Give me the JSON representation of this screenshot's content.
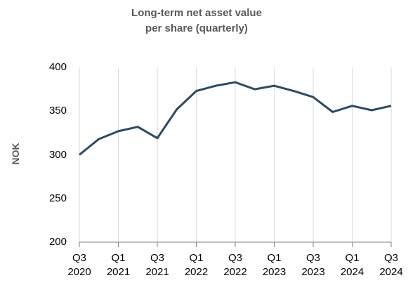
{
  "chart_data": {
    "type": "line",
    "title": "Long-term net asset value per share (quarterly)",
    "y_label": "NOK",
    "categories": [
      "Q3 2020",
      null,
      "Q1 2021",
      null,
      "Q3 2021",
      null,
      "Q1 2022",
      null,
      "Q3 2022",
      null,
      "Q1 2023",
      null,
      "Q3 2023",
      null,
      "Q1 2024",
      null,
      "Q3 2024"
    ],
    "series": [
      {
        "name": "Long-term net asset value per share",
        "color": "#2e4a62",
        "values": [
          300,
          318,
          327,
          332,
          319,
          352,
          373,
          379,
          383,
          375,
          379,
          373,
          366,
          349,
          356,
          351,
          356
        ]
      }
    ],
    "ylim": [
      200,
      400
    ],
    "yticks": [
      200,
      250,
      300,
      350,
      400
    ],
    "grid": true
  }
}
